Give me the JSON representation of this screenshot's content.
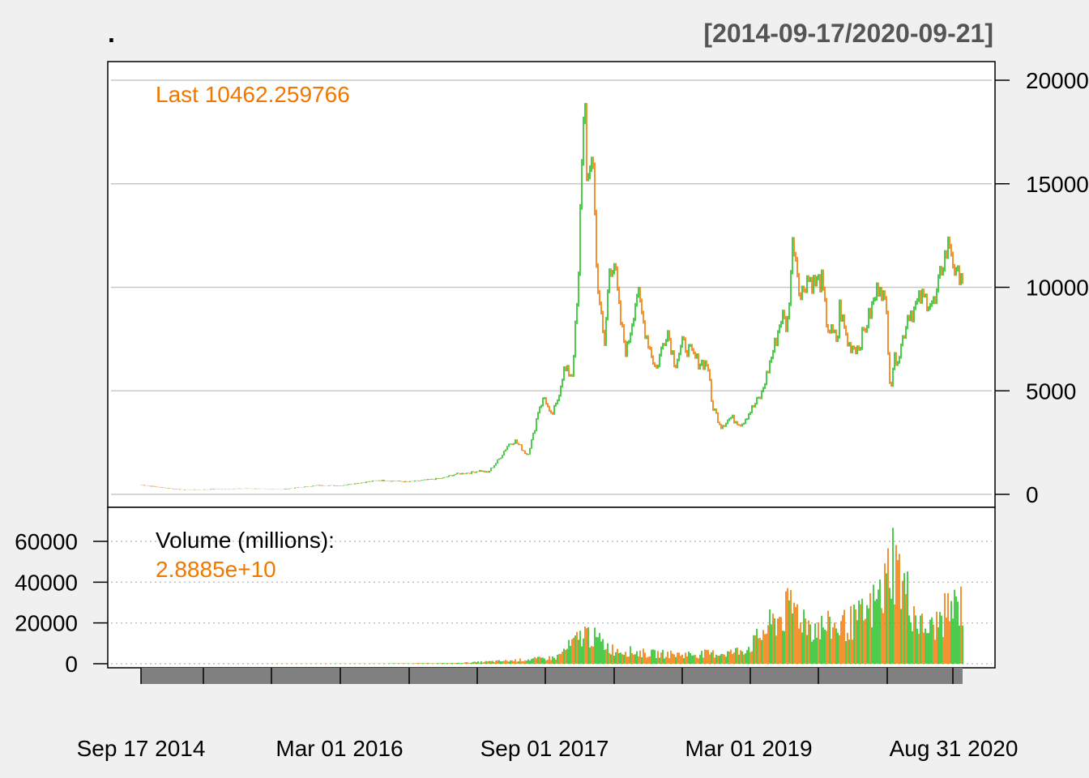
{
  "chart_data": {
    "type": "line",
    "title": ".",
    "date_range_label": "[2014-09-17/2020-09-21]",
    "last_label": "Last 10462.259766",
    "volume_label": "Volume (millions):",
    "volume_last_label": "2.8885e+10",
    "x_tick_labels": [
      "Sep 17 2014",
      "Mar 01 2016",
      "Sep 01 2017",
      "Mar 01 2019",
      "Aug 31 2020"
    ],
    "price_axis": {
      "ticks": [
        "0",
        "5000",
        "10000",
        "15000",
        "20000"
      ],
      "ylim": [
        0,
        20000
      ]
    },
    "volume_axis": {
      "ticks": [
        "0",
        "20000",
        "40000",
        "60000"
      ],
      "ylim": [
        0,
        60000
      ]
    },
    "colors": {
      "up": "#22c022",
      "down": "#f07800",
      "grid": "#c8c8c8",
      "axis": "#000000",
      "xaxis_band": "#808080",
      "title_gray": "#555555"
    },
    "price_series": {
      "name": "",
      "x": [
        "2014-09-17",
        "2014-11-01",
        "2015-01-14",
        "2015-04-01",
        "2015-07-01",
        "2015-10-01",
        "2016-01-01",
        "2016-03-01",
        "2016-06-15",
        "2016-09-01",
        "2016-12-01",
        "2017-01-05",
        "2017-02-15",
        "2017-03-10",
        "2017-04-01",
        "2017-05-01",
        "2017-05-25",
        "2017-06-12",
        "2017-07-16",
        "2017-08-01",
        "2017-08-15",
        "2017-09-01",
        "2017-09-15",
        "2017-10-01",
        "2017-10-20",
        "2017-11-12",
        "2017-11-29",
        "2017-12-07",
        "2017-12-17",
        "2017-12-22",
        "2018-01-06",
        "2018-01-16",
        "2018-02-06",
        "2018-02-20",
        "2018-03-05",
        "2018-03-20",
        "2018-04-06",
        "2018-05-05",
        "2018-05-25",
        "2018-06-24",
        "2018-07-24",
        "2018-08-14",
        "2018-09-04",
        "2018-10-15",
        "2018-11-10",
        "2018-11-20",
        "2018-12-15",
        "2019-01-10",
        "2019-02-08",
        "2019-04-02",
        "2019-05-13",
        "2019-05-27",
        "2019-06-10",
        "2019-06-26",
        "2019-07-16",
        "2019-08-01",
        "2019-08-20",
        "2019-09-10",
        "2019-09-25",
        "2019-10-23",
        "2019-10-26",
        "2019-11-20",
        "2019-12-17",
        "2020-01-15",
        "2020-02-13",
        "2020-03-01",
        "2020-03-12",
        "2020-03-20",
        "2020-04-05",
        "2020-04-29",
        "2020-05-10",
        "2020-06-01",
        "2020-06-15",
        "2020-07-10",
        "2020-07-27",
        "2020-08-17",
        "2020-09-05",
        "2020-09-15",
        "2020-09-21"
      ],
      "values": [
        460,
        350,
        200,
        250,
        280,
        240,
        430,
        420,
        680,
        600,
        780,
        980,
        1050,
        1150,
        1050,
        1700,
        2400,
        2600,
        1900,
        2900,
        4200,
        4700,
        3700,
        4300,
        6000,
        5800,
        10000,
        16000,
        19500,
        14000,
        17000,
        11000,
        7000,
        11000,
        11200,
        8500,
        6800,
        9800,
        8000,
        6000,
        8000,
        6300,
        7300,
        6400,
        6300,
        4400,
        3300,
        3700,
        3400,
        4800,
        7600,
        8700,
        8000,
        12500,
        9500,
        10500,
        10200,
        10300,
        8100,
        7400,
        9200,
        7200,
        7100,
        8600,
        10300,
        8800,
        5000,
        6400,
        6800,
        8800,
        8800,
        9500,
        9400,
        9200,
        11000,
        12200,
        10300,
        10900,
        10462
      ]
    },
    "volume_series": {
      "name": "",
      "x": [
        "2014-09-17",
        "2015-06-01",
        "2016-06-01",
        "2017-01-01",
        "2017-06-01",
        "2017-10-01",
        "2017-12-17",
        "2018-01-15",
        "2018-03-01",
        "2018-06-01",
        "2018-09-01",
        "2018-12-01",
        "2019-01-15",
        "2019-03-01",
        "2019-04-15",
        "2019-06-26",
        "2019-08-15",
        "2019-10-15",
        "2019-12-01",
        "2020-01-15",
        "2020-03-01",
        "2020-03-12",
        "2020-04-15",
        "2020-06-01",
        "2020-07-01",
        "2020-08-15",
        "2020-09-21"
      ],
      "values": [
        20,
        30,
        100,
        300,
        1500,
        3000,
        15000,
        12000,
        7000,
        5000,
        4500,
        5000,
        5500,
        8000,
        17000,
        28000,
        18000,
        18000,
        20000,
        25000,
        38000,
        55000,
        38000,
        18000,
        17000,
        26000,
        29000
      ]
    }
  }
}
